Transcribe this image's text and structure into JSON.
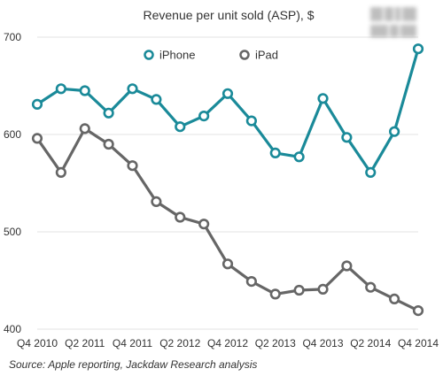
{
  "chart_data": {
    "type": "line",
    "title": "Revenue per unit sold (ASP), $",
    "categories": [
      "Q4 2010",
      "Q1 2011",
      "Q2 2011",
      "Q3 2011",
      "Q4 2011",
      "Q1 2012",
      "Q2 2012",
      "Q3 2012",
      "Q4 2012",
      "Q1 2013",
      "Q2 2013",
      "Q3 2013",
      "Q4 2013",
      "Q1 2014",
      "Q2 2014",
      "Q3 2014",
      "Q4 2014"
    ],
    "x_tick_labels": [
      "Q4 2010",
      "Q2 2011",
      "Q4 2011",
      "Q2 2012",
      "Q4 2012",
      "Q2 2013",
      "Q4 2013",
      "Q2 2014",
      "Q4 2014"
    ],
    "y_ticks": [
      400,
      500,
      600,
      700
    ],
    "ylim": [
      400,
      710
    ],
    "grid": true,
    "legend_position": "top-center",
    "series": [
      {
        "name": "iPhone",
        "color": "#1a8a99",
        "values": [
          631,
          647,
          645,
          622,
          647,
          636,
          608,
          619,
          642,
          614,
          581,
          577,
          637,
          597,
          561,
          603,
          688
        ]
      },
      {
        "name": "iPad",
        "color": "#666666",
        "values": [
          596,
          561,
          606,
          590,
          568,
          531,
          515,
          508,
          467,
          449,
          436,
          440,
          441,
          465,
          443,
          431,
          419
        ]
      }
    ]
  },
  "source_text": "Source: Apple reporting, Jackdaw Research analysis",
  "logo_icon": "company-logo-icon"
}
